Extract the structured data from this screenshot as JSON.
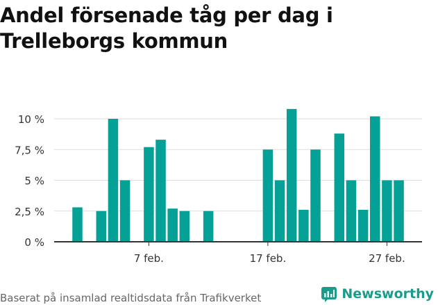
{
  "title": {
    "line1": "Andel försenade tåg per dag i",
    "line2": "Trelleborgs kommun"
  },
  "footer": {
    "source": "Baserat på insamlad realtidsdata från Trafikverket",
    "brand": "Newsworthy"
  },
  "colors": {
    "bar": "#05a197",
    "brand": "#1a9c8c",
    "grid": "#dddddd",
    "axis": "#333333",
    "text": "#333333"
  },
  "chart_data": {
    "type": "bar",
    "title": "Andel försenade tåg per dag i Trelleborgs kommun",
    "xlabel": "",
    "ylabel": "",
    "ylim": [
      0,
      12
    ],
    "y_ticks": [
      {
        "value": 0,
        "label": "0 %"
      },
      {
        "value": 2.5,
        "label": "2,5 %"
      },
      {
        "value": 5,
        "label": "5 %"
      },
      {
        "value": 7.5,
        "label": "7,5 %"
      },
      {
        "value": 10,
        "label": "10 %"
      }
    ],
    "x_ticks": [
      {
        "day": 7,
        "label": "7 feb."
      },
      {
        "day": 17,
        "label": "17 feb."
      },
      {
        "day": 27,
        "label": "27 feb."
      }
    ],
    "days": [
      1,
      2,
      3,
      4,
      5,
      6,
      7,
      8,
      9,
      10,
      11,
      12,
      13,
      14,
      15,
      16,
      17,
      18,
      19,
      20,
      21,
      22,
      23,
      24,
      25,
      26,
      27,
      28,
      29
    ],
    "values": [
      2.8,
      null,
      2.5,
      10.0,
      5.0,
      null,
      7.7,
      8.3,
      2.7,
      2.5,
      null,
      2.5,
      null,
      null,
      null,
      null,
      7.5,
      5.0,
      10.8,
      2.6,
      7.5,
      null,
      8.8,
      5.0,
      2.6,
      10.2,
      5.0,
      5.0,
      null
    ]
  }
}
